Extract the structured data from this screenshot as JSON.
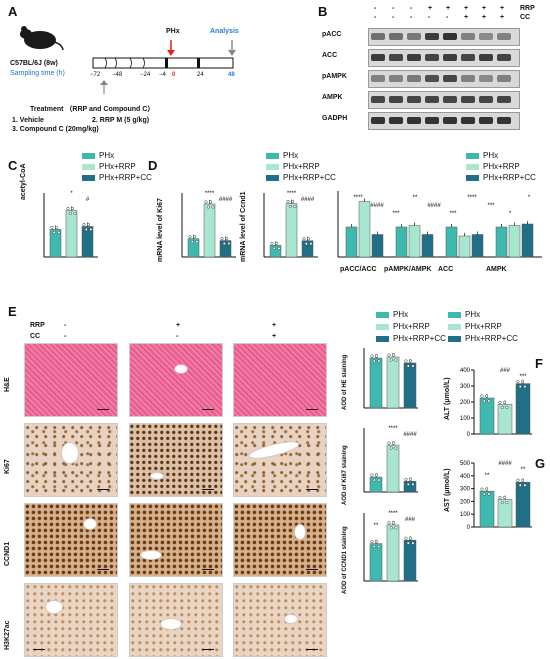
{
  "colors": {
    "phx": "#3fb9b0",
    "rrp": "#a8e6cf",
    "rrp_cc": "#1f6f86"
  },
  "legend": {
    "phx": "PHx",
    "rrp": "PHx+RRP",
    "rrp_cc": "PHx+RRP+CC"
  },
  "panel_a": {
    "label": "A",
    "strain": "C57BL/6J (8w)",
    "sampling": "Sampling time (h)",
    "phx": "PHx",
    "analysis": "Analysis",
    "ticks": [
      "−72",
      "−48",
      "−24",
      "−4",
      "0",
      "24",
      "48"
    ],
    "treatment": "Treatment （RRP and Compound C）",
    "vehicle": "1. Vehicle",
    "rrp_dose": "2. RRP M (5 g/kg)",
    "cc_dose": "3. Compound C (20mg/kg)"
  },
  "panel_b": {
    "label": "B",
    "rrp_row": "RRP",
    "cc_row": "CC",
    "rrp_signs": [
      "-",
      "-",
      "-",
      "+",
      "+",
      "+",
      "+",
      "+"
    ],
    "cc_signs": [
      "-",
      "-",
      "-",
      "-",
      "-",
      "+",
      "+",
      "+"
    ],
    "bands": [
      "pACC",
      "ACC",
      "pAMPK",
      "AMPK",
      "GADPH"
    ]
  },
  "panel_c": {
    "label": "C",
    "ylabel": "acetyl-CoA"
  },
  "panel_d": {
    "label": "D",
    "ylabel_ki67": "mRNA level of Ki67",
    "ylabel_ccnd1": "mRNA level of Ccnd1",
    "groups": [
      "pACC/ACC",
      "pAMPK/AMPK",
      "ACC",
      "AMPK"
    ]
  },
  "panel_e": {
    "label": "E",
    "rrp": "RRP",
    "cc": "CC",
    "rrp_signs": [
      "-",
      "+",
      "+"
    ],
    "cc_signs": [
      "-",
      "-",
      "+"
    ],
    "rows": [
      "H&E",
      "Ki67",
      "CCND1",
      "H3K27ac"
    ],
    "aod": [
      "AOD of HE staining",
      "AOD of Ki67 staining",
      "AOD of CCND1 staining"
    ]
  },
  "panel_f": {
    "label": "F",
    "ylabel": "ALT (μmol/L)"
  },
  "panel_g": {
    "label": "G",
    "ylabel": "AST (μmol/L)"
  },
  "chart_data": [
    {
      "type": "bar",
      "id": "C",
      "series": [
        {
          "name": "PHx",
          "values": [
            0.95
          ]
        },
        {
          "name": "PHx+RRP",
          "values": [
            1.6
          ]
        },
        {
          "name": "PHx+RRP+CC",
          "values": [
            1.05
          ]
        }
      ],
      "ylabel": "acetyl-CoA",
      "annotations": [
        "*",
        "#"
      ]
    },
    {
      "type": "bar",
      "id": "D-Ki67",
      "series": [
        {
          "name": "PHx",
          "values": [
            1.0
          ]
        },
        {
          "name": "PHx+RRP",
          "values": [
            2.9
          ]
        },
        {
          "name": "PHx+RRP+CC",
          "values": [
            0.9
          ]
        }
      ],
      "ylabel": "mRNA level of Ki67",
      "annotations": [
        "****",
        "####"
      ]
    },
    {
      "type": "bar",
      "id": "D-Ccnd1",
      "series": [
        {
          "name": "PHx",
          "values": [
            1.0
          ]
        },
        {
          "name": "PHx+RRP",
          "values": [
            4.6
          ]
        },
        {
          "name": "PHx+RRP+CC",
          "values": [
            1.4
          ]
        }
      ],
      "ylabel": "mRNA level of Ccnd1",
      "annotations": [
        "****",
        "####"
      ]
    },
    {
      "type": "bar",
      "id": "D-blot",
      "categories": [
        "pACC/ACC",
        "pAMPK/AMPK",
        "ACC",
        "AMPK"
      ],
      "series": [
        {
          "name": "PHx",
          "values": [
            1.0,
            1.0,
            1.0,
            1.0
          ]
        },
        {
          "name": "PHx+RRP",
          "values": [
            1.85,
            1.05,
            0.7,
            1.05
          ]
        },
        {
          "name": "PHx+RRP+CC",
          "values": [
            0.75,
            0.75,
            0.75,
            1.1
          ]
        }
      ],
      "annotations": [
        "****",
        "####",
        "***",
        "**",
        "####",
        "***",
        "****",
        "***",
        "*",
        "*"
      ]
    },
    {
      "type": "bar",
      "id": "E-HE",
      "series": [
        {
          "name": "PHx",
          "values": [
            0.5
          ]
        },
        {
          "name": "PHx+RRP",
          "values": [
            0.51
          ]
        },
        {
          "name": "PHx+RRP+CC",
          "values": [
            0.45
          ]
        }
      ],
      "ylabel": "AOD of HE staining",
      "ylim": [
        0,
        0.6
      ]
    },
    {
      "type": "bar",
      "id": "E-Ki67",
      "series": [
        {
          "name": "PHx",
          "values": [
            0.07
          ]
        },
        {
          "name": "PHx+RRP",
          "values": [
            0.22
          ]
        },
        {
          "name": "PHx+RRP+CC",
          "values": [
            0.05
          ]
        }
      ],
      "ylabel": "AOD of Ki67 staining",
      "ylim": [
        0,
        0.3
      ],
      "annotations": [
        "****",
        "####"
      ]
    },
    {
      "type": "bar",
      "id": "E-CCND1",
      "series": [
        {
          "name": "PHx",
          "values": [
            0.44
          ]
        },
        {
          "name": "PHx+RRP",
          "values": [
            0.66
          ]
        },
        {
          "name": "PHx+RRP+CC",
          "values": [
            0.48
          ]
        }
      ],
      "ylabel": "AOD of CCND1 staining",
      "ylim": [
        0,
        0.8
      ],
      "annotations": [
        "****",
        "###",
        "**"
      ]
    },
    {
      "type": "bar",
      "id": "F",
      "series": [
        {
          "name": "PHx",
          "values": [
            225
          ]
        },
        {
          "name": "PHx+RRP",
          "values": [
            185
          ]
        },
        {
          "name": "PHx+RRP+CC",
          "values": [
            315
          ]
        }
      ],
      "ylabel": "ALT (μmol/L)",
      "ylim": [
        0,
        400
      ],
      "yticks": [
        0,
        100,
        200,
        300,
        400
      ],
      "annotations": [
        "###",
        "***"
      ]
    },
    {
      "type": "bar",
      "id": "G",
      "series": [
        {
          "name": "PHx",
          "values": [
            280
          ]
        },
        {
          "name": "PHx+RRP",
          "values": [
            215
          ]
        },
        {
          "name": "PHx+RRP+CC",
          "values": [
            350
          ]
        }
      ],
      "ylabel": "AST (μmol/L)",
      "ylim": [
        0,
        500
      ],
      "yticks": [
        0,
        100,
        200,
        300,
        400,
        500
      ],
      "annotations": [
        "####",
        "**",
        "**"
      ]
    }
  ]
}
